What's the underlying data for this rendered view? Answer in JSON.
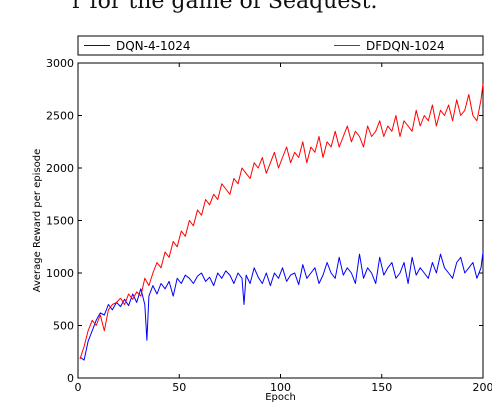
{
  "caption_fragment": "r for the game of Seaquest.",
  "chart_data": {
    "type": "line",
    "title": "",
    "xlabel": "Epoch",
    "ylabel": "Average Reward per episode",
    "xlim": [
      0,
      200
    ],
    "ylim": [
      0,
      3000
    ],
    "xticks": [
      0,
      50,
      100,
      150,
      200
    ],
    "yticks": [
      0,
      500,
      1000,
      1500,
      2000,
      2500,
      3000
    ],
    "grid": false,
    "legend": "top",
    "series": [
      {
        "name": "DQN-4-1024",
        "color": "#0000ff",
        "x": [
          1,
          3,
          5,
          7,
          9,
          11,
          13,
          15,
          17,
          19,
          21,
          23,
          25,
          27,
          29,
          31,
          33,
          34,
          35,
          37,
          39,
          41,
          43,
          45,
          47,
          49,
          51,
          53,
          55,
          57,
          59,
          61,
          63,
          65,
          67,
          69,
          71,
          73,
          75,
          77,
          79,
          81,
          82,
          83,
          85,
          87,
          89,
          91,
          93,
          95,
          97,
          99,
          101,
          103,
          105,
          107,
          109,
          111,
          113,
          115,
          117,
          119,
          121,
          123,
          125,
          127,
          129,
          131,
          133,
          135,
          137,
          139,
          141,
          143,
          145,
          147,
          149,
          151,
          153,
          155,
          157,
          159,
          161,
          163,
          165,
          167,
          169,
          171,
          173,
          175,
          177,
          179,
          181,
          183,
          185,
          187,
          189,
          191,
          193,
          195,
          197,
          199,
          200
        ],
        "y": [
          200,
          170,
          350,
          450,
          550,
          620,
          600,
          700,
          650,
          720,
          680,
          750,
          690,
          800,
          720,
          850,
          700,
          360,
          780,
          880,
          800,
          900,
          850,
          920,
          780,
          950,
          900,
          980,
          950,
          900,
          970,
          1000,
          920,
          960,
          880,
          1000,
          950,
          1020,
          980,
          900,
          1000,
          950,
          700,
          980,
          900,
          1050,
          960,
          900,
          1000,
          880,
          1000,
          950,
          1050,
          920,
          980,
          1000,
          890,
          1080,
          950,
          1000,
          1050,
          900,
          980,
          1100,
          1000,
          950,
          1150,
          980,
          1050,
          1000,
          900,
          1180,
          950,
          1050,
          1000,
          900,
          1150,
          980,
          1050,
          1100,
          950,
          1000,
          1100,
          900,
          1150,
          980,
          1050,
          1000,
          950,
          1100,
          1000,
          1180,
          1050,
          1000,
          950,
          1100,
          1150,
          1000,
          1050,
          1100,
          950,
          1050,
          1200
        ]
      },
      {
        "name": "DFDQN-1024",
        "color": "#ff0000",
        "x": [
          1,
          3,
          5,
          7,
          9,
          11,
          13,
          15,
          17,
          19,
          21,
          23,
          25,
          27,
          29,
          31,
          33,
          35,
          37,
          39,
          41,
          43,
          45,
          47,
          49,
          51,
          53,
          55,
          57,
          59,
          61,
          63,
          65,
          67,
          69,
          71,
          73,
          75,
          77,
          79,
          81,
          83,
          85,
          87,
          89,
          91,
          93,
          95,
          97,
          99,
          101,
          103,
          105,
          107,
          109,
          111,
          113,
          115,
          117,
          119,
          121,
          123,
          125,
          127,
          129,
          131,
          133,
          135,
          137,
          139,
          141,
          143,
          145,
          147,
          149,
          151,
          153,
          155,
          157,
          159,
          161,
          163,
          165,
          167,
          169,
          171,
          173,
          175,
          177,
          179,
          181,
          183,
          185,
          187,
          189,
          191,
          193,
          195,
          197,
          199,
          200
        ],
        "y": [
          180,
          300,
          450,
          550,
          500,
          600,
          450,
          650,
          700,
          720,
          760,
          700,
          800,
          750,
          820,
          780,
          950,
          880,
          1000,
          1100,
          1050,
          1200,
          1150,
          1300,
          1250,
          1400,
          1350,
          1500,
          1450,
          1600,
          1550,
          1700,
          1650,
          1750,
          1700,
          1850,
          1800,
          1750,
          1900,
          1850,
          2000,
          1950,
          1900,
          2050,
          2000,
          2100,
          1950,
          2050,
          2150,
          2000,
          2100,
          2200,
          2050,
          2150,
          2100,
          2250,
          2050,
          2200,
          2150,
          2300,
          2100,
          2250,
          2200,
          2350,
          2200,
          2300,
          2400,
          2250,
          2350,
          2300,
          2200,
          2400,
          2300,
          2350,
          2450,
          2300,
          2400,
          2350,
          2500,
          2300,
          2450,
          2400,
          2350,
          2550,
          2400,
          2500,
          2450,
          2600,
          2400,
          2550,
          2500,
          2600,
          2450,
          2650,
          2500,
          2550,
          2700,
          2500,
          2450,
          2650,
          2800
        ]
      }
    ]
  }
}
